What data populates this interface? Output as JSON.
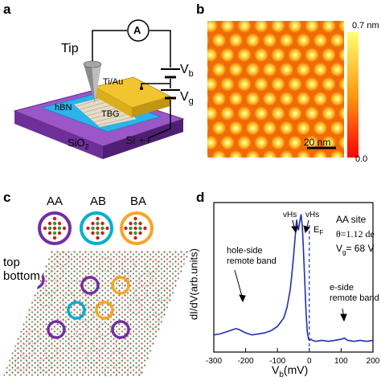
{
  "panels": {
    "a": {
      "letter": "a",
      "labels": {
        "tip": "Tip",
        "ammeter": "A",
        "vb_main": "V",
        "vb_sub": "b",
        "vg_main": "V",
        "vg_sub": "g",
        "electrode": "Ti/Au",
        "hbn": "hBN",
        "tbg": "TBG",
        "sio2_main": "SiO",
        "sio2_sub": "2",
        "si": "Si ++"
      }
    },
    "b": {
      "letter": "b",
      "colorbar_max": "0.7 nm",
      "colorbar_min": "0.0",
      "scalebar": "20 nm"
    },
    "c": {
      "letter": "c",
      "stackings": [
        "AA",
        "AB",
        "BA"
      ],
      "ring_colors": [
        "#7030a0",
        "#00b0d0",
        "#f5a623"
      ],
      "layer_top": "top",
      "layer_bottom": "bottom"
    },
    "d": {
      "letter": "d",
      "site_label": "AA site",
      "theta_label": "θ=1.12 de",
      "vg_label_main": "V",
      "vg_label_sub": "g",
      "vg_label_value": "= 68 V",
      "ylabel": "dI/dV(arb.units)",
      "xlabel_main": "V",
      "xlabel_sub": "b",
      "xlabel_unit": "(mV)",
      "vhs_left": "vHs",
      "vhs_right": "vHs",
      "ef_main": "E",
      "ef_sub": "F",
      "hole_note_1": "hole-side",
      "hole_note_2": "remote band",
      "e_note_1": "e-side",
      "e_note_2": "remote band"
    }
  },
  "chart_data": {
    "type": "line",
    "title": "",
    "xlabel": "Vb(mV)",
    "ylabel": "dI/dV(arb.units)",
    "xlim": [
      -300,
      200
    ],
    "xticks": [
      -300,
      -200,
      -100,
      0,
      100,
      200
    ],
    "grid": false,
    "series": [
      {
        "color": "#1f2fb0",
        "x": [
          -300,
          -280,
          -260,
          -240,
          -230,
          -220,
          -200,
          -180,
          -160,
          -140,
          -120,
          -100,
          -80,
          -70,
          -60,
          -55,
          -50,
          -45,
          -40,
          -37,
          -34,
          -30,
          -26,
          -22,
          -18,
          -14,
          -10,
          -6,
          -2,
          0,
          5,
          10,
          20,
          40,
          60,
          80,
          100,
          110,
          120,
          140,
          160,
          180,
          200
        ],
        "y": [
          0.36,
          0.37,
          0.39,
          0.41,
          0.42,
          0.41,
          0.38,
          0.36,
          0.37,
          0.38,
          0.4,
          0.44,
          0.52,
          0.62,
          0.78,
          0.92,
          1.08,
          1.26,
          1.44,
          1.38,
          1.34,
          1.42,
          1.49,
          1.38,
          1.12,
          0.84,
          0.56,
          0.38,
          0.32,
          0.31,
          0.32,
          0.31,
          0.3,
          0.31,
          0.3,
          0.31,
          0.32,
          0.33,
          0.31,
          0.3,
          0.31,
          0.3,
          0.31
        ]
      }
    ],
    "annotations": [
      "vHs",
      "vHs",
      "EF",
      "hole-side remote band",
      "e-side remote band"
    ]
  }
}
